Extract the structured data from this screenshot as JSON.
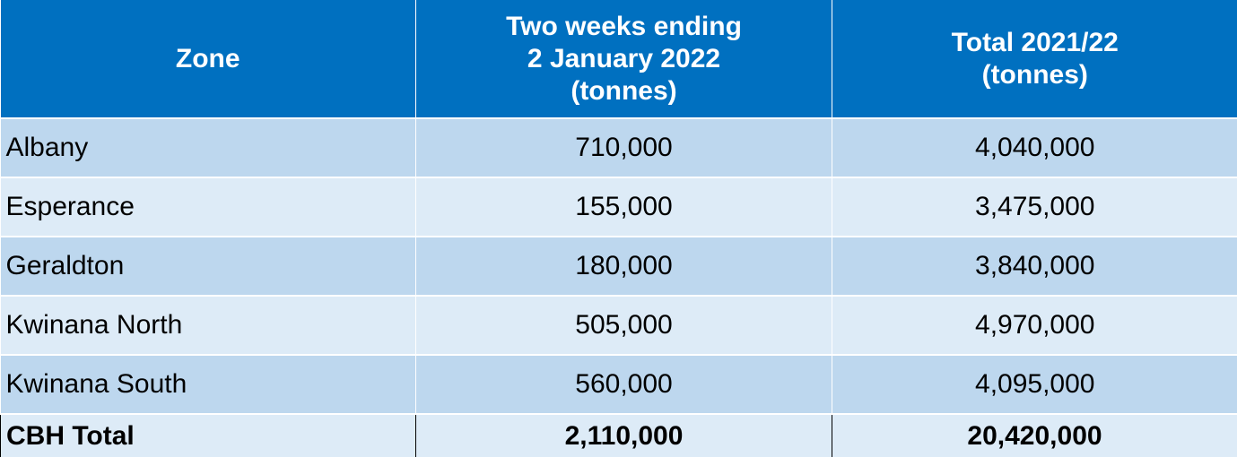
{
  "chart_data": {
    "type": "table",
    "columns": [
      {
        "label": "Zone"
      },
      {
        "lines": [
          "Two weeks ending",
          "2 January 2022",
          "(tonnes)"
        ]
      },
      {
        "lines": [
          "Total 2021/22",
          "(tonnes)"
        ]
      }
    ],
    "rows": [
      {
        "zone": "Albany",
        "two_weeks": "710,000",
        "total": "4,040,000"
      },
      {
        "zone": "Esperance",
        "two_weeks": "155,000",
        "total": "3,475,000"
      },
      {
        "zone": "Geraldton",
        "two_weeks": "180,000",
        "total": "3,840,000"
      },
      {
        "zone": "Kwinana North",
        "two_weeks": "505,000",
        "total": "4,970,000"
      },
      {
        "zone": "Kwinana South",
        "two_weeks": "560,000",
        "total": "4,095,000"
      }
    ],
    "total_row": {
      "zone": "CBH Total",
      "two_weeks": "2,110,000",
      "total": "20,420,000"
    },
    "colors": {
      "header_bg": "#0070c0",
      "header_text": "#ffffff",
      "row_odd": "#bdd7ee",
      "row_even": "#ddebf7"
    }
  }
}
